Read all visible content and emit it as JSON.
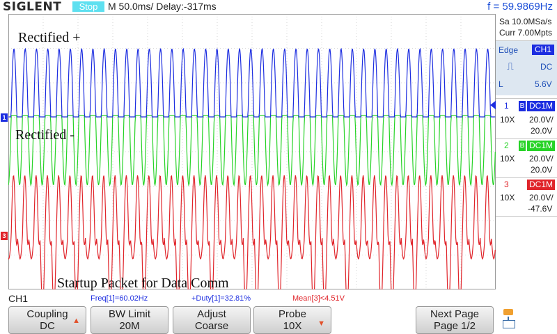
{
  "header": {
    "logo": "SIGLENT",
    "run_state": "Stop",
    "timebase": "M 50.0ms/ Delay:-317ms",
    "frequency": "f = 59.9869Hz"
  },
  "acquisition": {
    "sample_rate": "Sa 10.0MSa/s",
    "memory_depth": "Curr 7.00Mpts"
  },
  "trigger": {
    "type": "Edge",
    "source": "CH1",
    "coupling": "DC",
    "mode": "L",
    "level": "5.6V"
  },
  "channels": [
    {
      "number": "1",
      "bw": "B",
      "coupling": "DC1M",
      "probe": "10X",
      "scale": "20.0V/",
      "offset": "20.0V",
      "color": "#1c2de0"
    },
    {
      "number": "2",
      "bw": "B",
      "coupling": "DC1M",
      "probe": "10X",
      "scale": "20.0V/",
      "offset": "20.0V",
      "color": "#27d327"
    },
    {
      "number": "3",
      "bw": "",
      "coupling": "DC1M",
      "probe": "10X",
      "scale": "20.0V/",
      "offset": "-47.6V",
      "color": "#e0242a"
    }
  ],
  "annotations": {
    "rectified_plus": "Rectified +",
    "rectified_minus": "Rectified -",
    "startup_packet": "Startup Packet for Data Comm"
  },
  "status": {
    "active_channel": "CH1",
    "meas1": "Freq[1]=60.02Hz",
    "meas2": "+Duty[1]=32.81%",
    "meas3": "Mean[3]<4.51V"
  },
  "softkeys": [
    {
      "line1": "Coupling",
      "line2": "DC"
    },
    {
      "line1": "BW Limit",
      "line2": "20M"
    },
    {
      "line1": "Adjust",
      "line2": "Coarse"
    },
    {
      "line1": "Probe",
      "line2": "10X"
    },
    {
      "line1": "Next Page",
      "line2": "Page 1/2"
    }
  ],
  "channel_markers": {
    "ch1": "1",
    "ch3": "3"
  }
}
